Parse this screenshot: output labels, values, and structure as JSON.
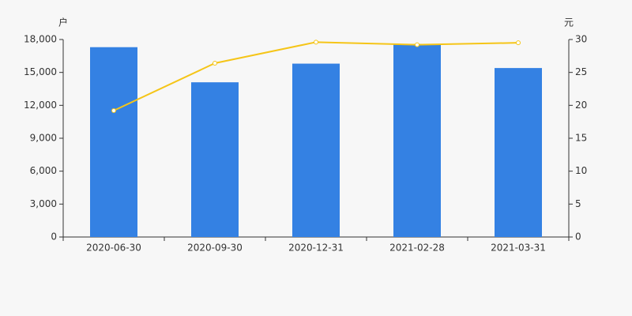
{
  "chart_data": {
    "type": "bar",
    "y_label": "户",
    "y2_label": "元",
    "categories": [
      "2020-06-30",
      "2020-09-30",
      "2020-12-31",
      "2021-02-28",
      "2021-03-31"
    ],
    "series": [
      {
        "type": "bar",
        "color": "#3481e3",
        "values": [
          17300,
          14100,
          15800,
          17600,
          15400
        ]
      },
      {
        "type": "line",
        "axis": "y2",
        "color": "#f5c518",
        "values": [
          19.2,
          26.4,
          29.6,
          29.2,
          29.5
        ]
      }
    ],
    "ylim": [
      0,
      18000
    ],
    "yticks": [
      0,
      {
        "value": 3000,
        "label": "3,000"
      },
      {
        "value": 6000,
        "label": "6,000"
      },
      {
        "value": 9000,
        "label": "9,000"
      },
      {
        "value": 12000,
        "label": "12,000"
      },
      {
        "value": 15000,
        "label": "15,000"
      },
      {
        "value": 18000,
        "label": "18,000"
      }
    ],
    "y2lim": [
      0,
      30
    ],
    "y2ticks": [
      0,
      5,
      10,
      15,
      20,
      25,
      30
    ]
  }
}
